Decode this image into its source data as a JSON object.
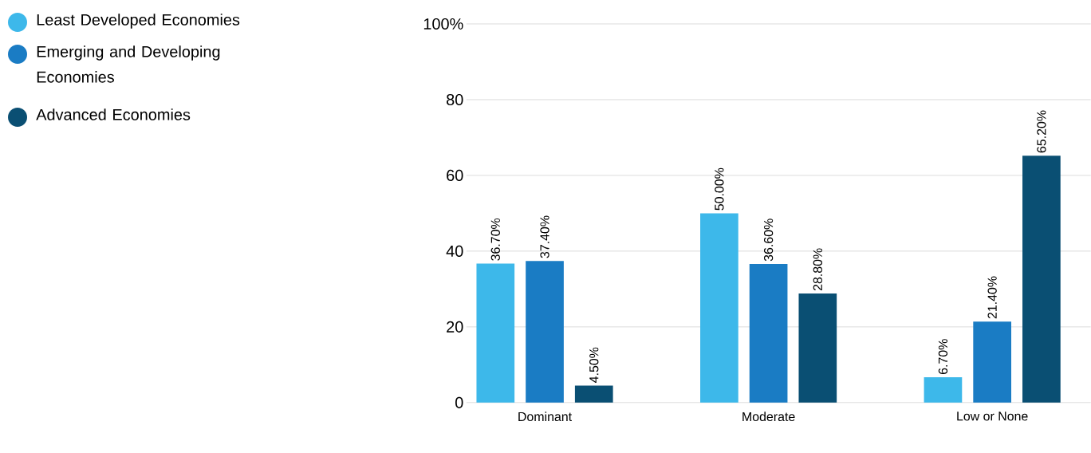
{
  "chart_data": {
    "type": "bar",
    "categories": [
      "Dominant",
      "Moderate",
      "Low or None"
    ],
    "series": [
      {
        "name": "Least Developed Economies",
        "color": "#3db8ea",
        "values": [
          36.7,
          50.0,
          6.7
        ],
        "value_labels": [
          "36.70%",
          "50.00%",
          "6.70%"
        ]
      },
      {
        "name": "Emerging and Developing Economies",
        "color": "#1a7cc4",
        "values": [
          37.4,
          36.6,
          21.4
        ],
        "value_labels": [
          "37.40%",
          "36.60%",
          "21.40%"
        ]
      },
      {
        "name": "Advanced Economies",
        "color": "#0a4f73",
        "values": [
          4.5,
          28.8,
          65.2
        ],
        "value_labels": [
          "4.50%",
          "28.80%",
          "65.20%"
        ]
      }
    ],
    "ylim": [
      0,
      100
    ],
    "yticks": [
      0,
      20,
      40,
      60,
      80,
      {
        "value": 100,
        "label": "100%"
      }
    ],
    "grid": "y",
    "legend": "top left"
  }
}
